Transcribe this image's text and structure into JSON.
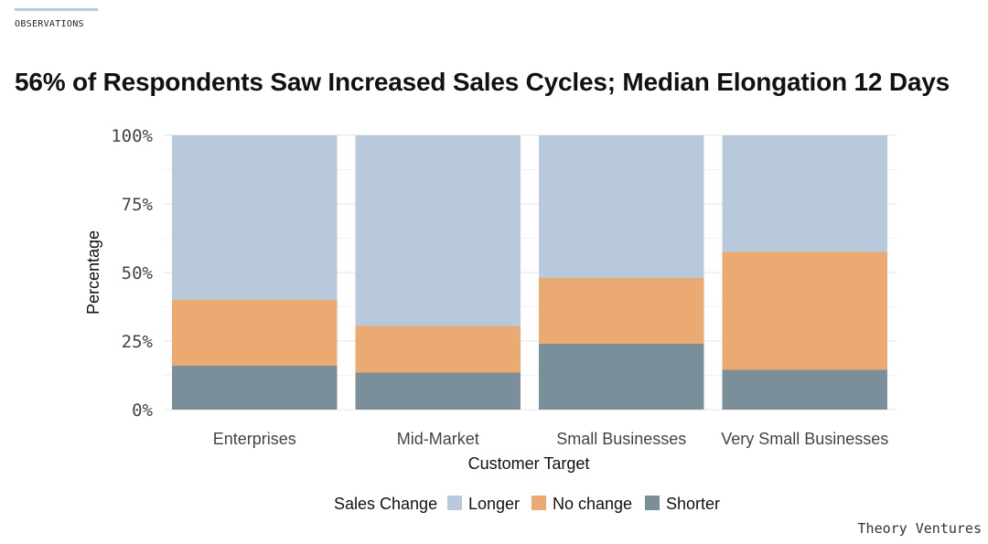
{
  "header": {
    "section_label": "OBSERVATIONS",
    "title": "56% of Respondents Saw Increased Sales Cycles; Median Elongation 12 Days"
  },
  "footer": {
    "brand": "Theory Ventures"
  },
  "chart_data": {
    "type": "bar",
    "stacked": true,
    "title": "56% of Respondents Saw Increased Sales Cycles; Median Elongation 12 Days",
    "xlabel": "Customer Target",
    "ylabel": "Percentage",
    "categories": [
      "Enterprises",
      "Mid-Market",
      "Small Businesses",
      "Very Small Businesses"
    ],
    "series": [
      {
        "name": "Shorter",
        "color": "#7a8f99",
        "values": [
          16,
          13.5,
          24,
          14.5
        ]
      },
      {
        "name": "No change",
        "color": "#eaaa72",
        "values": [
          24,
          17,
          24,
          43
        ]
      },
      {
        "name": "Longer",
        "color": "#b9c9dc",
        "values": [
          60,
          69.5,
          52,
          42.5
        ]
      }
    ],
    "ylim": [
      0,
      100
    ],
    "yticks": [
      0,
      25,
      50,
      75,
      100
    ],
    "ytick_labels": [
      "0%",
      "25%",
      "50%",
      "75%",
      "100%"
    ],
    "grid": true,
    "legend": {
      "title": "Sales Change",
      "placement": "bottom",
      "entries": [
        {
          "name": "Longer",
          "color": "#b9c9dc"
        },
        {
          "name": "No change",
          "color": "#eaaa72"
        },
        {
          "name": "Shorter",
          "color": "#7a8f99"
        }
      ]
    }
  }
}
